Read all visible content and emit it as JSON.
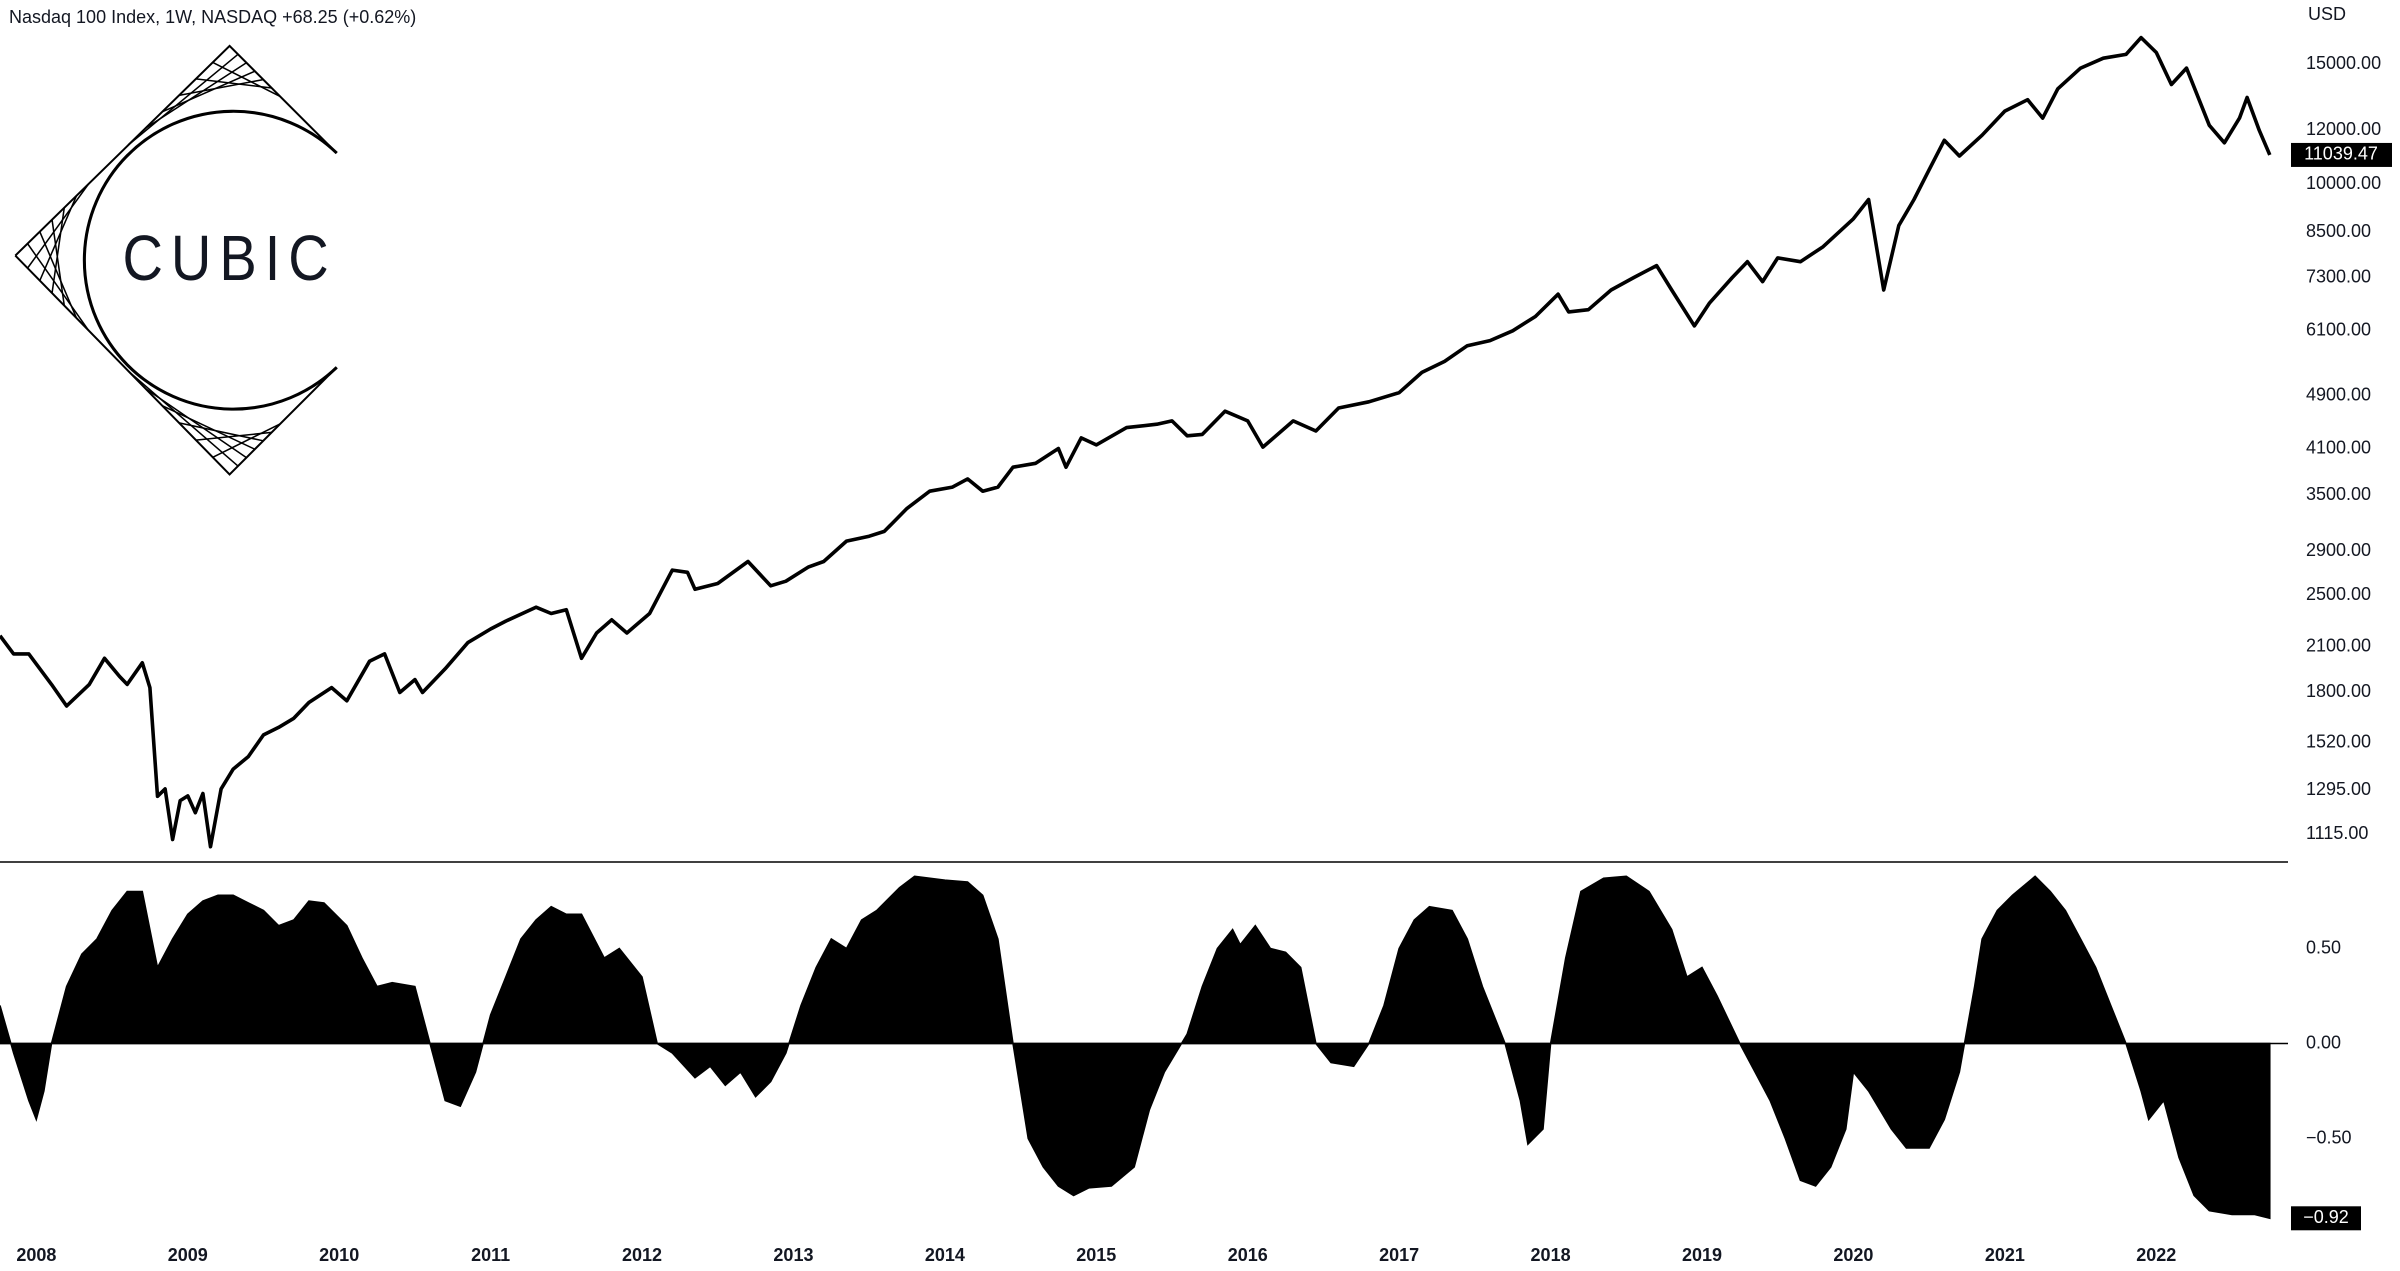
{
  "chart_data": [
    {
      "type": "line",
      "title": "Nasdaq 100 Index, 1W, NASDAQ  +68.25 (+0.62%)",
      "currency": "USD",
      "logo_text": "CUBIC",
      "log_scale": true,
      "color": "#000000",
      "x": [
        2007.76,
        2007.85,
        2007.95,
        2008.1,
        2008.2,
        2008.35,
        2008.45,
        2008.55,
        2008.6,
        2008.7,
        2008.75,
        2008.8,
        2008.85,
        2008.9,
        2008.95,
        2009.0,
        2009.05,
        2009.1,
        2009.15,
        2009.22,
        2009.3,
        2009.4,
        2009.5,
        2009.6,
        2009.7,
        2009.8,
        2009.95,
        2010.05,
        2010.2,
        2010.3,
        2010.4,
        2010.5,
        2010.55,
        2010.7,
        2010.85,
        2011.0,
        2011.1,
        2011.3,
        2011.4,
        2011.5,
        2011.6,
        2011.7,
        2011.8,
        2011.9,
        2012.05,
        2012.2,
        2012.3,
        2012.35,
        2012.5,
        2012.7,
        2012.85,
        2012.95,
        2013.1,
        2013.2,
        2013.35,
        2013.5,
        2013.6,
        2013.75,
        2013.9,
        2014.05,
        2014.15,
        2014.25,
        2014.35,
        2014.45,
        2014.6,
        2014.75,
        2014.8,
        2014.9,
        2015.0,
        2015.2,
        2015.4,
        2015.5,
        2015.6,
        2015.7,
        2015.85,
        2016.0,
        2016.1,
        2016.3,
        2016.45,
        2016.6,
        2016.8,
        2017.0,
        2017.15,
        2017.3,
        2017.45,
        2017.6,
        2017.75,
        2017.9,
        2018.05,
        2018.12,
        2018.25,
        2018.4,
        2018.55,
        2018.7,
        2018.8,
        2018.95,
        2019.05,
        2019.2,
        2019.3,
        2019.4,
        2019.5,
        2019.65,
        2019.8,
        2020.0,
        2020.1,
        2020.2,
        2020.3,
        2020.4,
        2020.5,
        2020.6,
        2020.7,
        2020.85,
        2021.0,
        2021.15,
        2021.25,
        2021.35,
        2021.5,
        2021.65,
        2021.8,
        2021.9,
        2022.0,
        2022.1,
        2022.2,
        2022.35,
        2022.45,
        2022.55,
        2022.6,
        2022.68,
        2022.75
      ],
      "values": [
        2180,
        2050,
        2050,
        1850,
        1720,
        1850,
        2020,
        1900,
        1850,
        1990,
        1830,
        1268,
        1300,
        1096,
        1250,
        1270,
        1200,
        1280,
        1070,
        1300,
        1390,
        1450,
        1560,
        1600,
        1650,
        1740,
        1830,
        1750,
        2000,
        2050,
        1800,
        1880,
        1800,
        1950,
        2130,
        2230,
        2290,
        2400,
        2350,
        2380,
        2020,
        2200,
        2300,
        2200,
        2350,
        2720,
        2700,
        2550,
        2600,
        2800,
        2580,
        2620,
        2750,
        2800,
        3000,
        3050,
        3100,
        3350,
        3550,
        3600,
        3700,
        3550,
        3600,
        3850,
        3900,
        4100,
        3850,
        4250,
        4150,
        4400,
        4450,
        4500,
        4280,
        4300,
        4650,
        4500,
        4120,
        4500,
        4350,
        4700,
        4800,
        4950,
        5300,
        5500,
        5800,
        5900,
        6100,
        6400,
        6900,
        6500,
        6550,
        7000,
        7300,
        7600,
        7000,
        6200,
        6700,
        7300,
        7700,
        7200,
        7800,
        7700,
        8100,
        8900,
        9500,
        7000,
        8700,
        9500,
        10500,
        11600,
        11000,
        11800,
        12800,
        13300,
        12500,
        13800,
        14800,
        15300,
        15500,
        16400,
        15600,
        14000,
        14800,
        12200,
        11500,
        12500,
        13400,
        12000,
        11039.47
      ],
      "xlim": [
        2007.76,
        2022.87
      ],
      "ylim": [
        1016,
        18620
      ],
      "yticks": [
        {
          "value": 1115,
          "label": "1115.00"
        },
        {
          "value": 1295,
          "label": "1295.00"
        },
        {
          "value": 1520,
          "label": "1520.00"
        },
        {
          "value": 1800,
          "label": "1800.00"
        },
        {
          "value": 2100,
          "label": "2100.00"
        },
        {
          "value": 2500,
          "label": "2500.00"
        },
        {
          "value": 2900,
          "label": "2900.00"
        },
        {
          "value": 3500,
          "label": "3500.00"
        },
        {
          "value": 4100,
          "label": "4100.00"
        },
        {
          "value": 4900,
          "label": "4900.00"
        },
        {
          "value": 6100,
          "label": "6100.00"
        },
        {
          "value": 7300,
          "label": "7300.00"
        },
        {
          "value": 8500,
          "label": "8500.00"
        },
        {
          "value": 10000,
          "label": "10000.00"
        },
        {
          "value": 12000,
          "label": "12000.00"
        },
        {
          "value": 15000,
          "label": "15000.00"
        }
      ]
    },
    {
      "type": "area",
      "color": "#000000",
      "last_label": "−0.92",
      "x": [
        2007.76,
        2007.85,
        2007.95,
        2008.0,
        2008.05,
        2008.1,
        2008.2,
        2008.3,
        2008.4,
        2008.5,
        2008.6,
        2008.7,
        2008.75,
        2008.8,
        2008.9,
        2009.0,
        2009.1,
        2009.2,
        2009.3,
        2009.4,
        2009.5,
        2009.6,
        2009.7,
        2009.8,
        2009.9,
        2010.05,
        2010.15,
        2010.25,
        2010.35,
        2010.5,
        2010.6,
        2010.7,
        2010.8,
        2010.9,
        2011.0,
        2011.1,
        2011.2,
        2011.3,
        2011.4,
        2011.5,
        2011.6,
        2011.75,
        2011.85,
        2012.0,
        2012.1,
        2012.2,
        2012.35,
        2012.45,
        2012.55,
        2012.65,
        2012.75,
        2012.85,
        2012.95,
        2013.05,
        2013.15,
        2013.25,
        2013.35,
        2013.45,
        2013.55,
        2013.7,
        2013.8,
        2014.0,
        2014.15,
        2014.25,
        2014.35,
        2014.45,
        2014.55,
        2014.65,
        2014.75,
        2014.85,
        2014.95,
        2015.1,
        2015.25,
        2015.35,
        2015.45,
        2015.6,
        2015.7,
        2015.8,
        2015.9,
        2015.95,
        2016.05,
        2016.15,
        2016.25,
        2016.35,
        2016.45,
        2016.55,
        2016.7,
        2016.8,
        2016.9,
        2017.0,
        2017.1,
        2017.2,
        2017.35,
        2017.45,
        2017.55,
        2017.7,
        2017.8,
        2017.85,
        2017.95,
        2018.0,
        2018.1,
        2018.2,
        2018.35,
        2018.5,
        2018.65,
        2018.8,
        2018.9,
        2019.0,
        2019.1,
        2019.25,
        2019.35,
        2019.45,
        2019.55,
        2019.65,
        2019.75,
        2019.85,
        2019.95,
        2020.0,
        2020.1,
        2020.25,
        2020.35,
        2020.5,
        2020.6,
        2020.7,
        2020.8,
        2020.85,
        2020.95,
        2021.05,
        2021.2,
        2021.3,
        2021.4,
        2021.5,
        2021.6,
        2021.7,
        2021.8,
        2021.9,
        2021.95,
        2022.05,
        2022.15,
        2022.25,
        2022.35,
        2022.5,
        2022.65,
        2022.75
      ],
      "values": [
        0.2,
        -0.05,
        -0.3,
        -0.4,
        -0.25,
        0.0,
        0.3,
        0.47,
        0.55,
        0.7,
        0.8,
        0.8,
        0.6,
        0.4,
        0.55,
        0.68,
        0.75,
        0.78,
        0.78,
        0.74,
        0.7,
        0.62,
        0.65,
        0.75,
        0.74,
        0.62,
        0.45,
        0.3,
        0.32,
        0.3,
        0.0,
        -0.3,
        -0.33,
        -0.15,
        0.15,
        0.35,
        0.55,
        0.65,
        0.72,
        0.68,
        0.68,
        0.45,
        0.5,
        0.35,
        0.0,
        -0.05,
        -0.18,
        -0.12,
        -0.22,
        -0.15,
        -0.28,
        -0.2,
        -0.05,
        0.2,
        0.4,
        0.55,
        0.5,
        0.65,
        0.7,
        0.82,
        0.88,
        0.86,
        0.85,
        0.78,
        0.55,
        0.0,
        -0.5,
        -0.65,
        -0.75,
        -0.8,
        -0.76,
        -0.75,
        -0.65,
        -0.35,
        -0.15,
        0.05,
        0.3,
        0.5,
        0.6,
        0.52,
        0.62,
        0.5,
        0.48,
        0.4,
        0.0,
        -0.1,
        -0.12,
        0.0,
        0.2,
        0.5,
        0.65,
        0.72,
        0.7,
        0.55,
        0.3,
        0.0,
        -0.3,
        -0.53,
        -0.45,
        0.0,
        0.45,
        0.8,
        0.87,
        0.88,
        0.8,
        0.6,
        0.35,
        0.4,
        0.25,
        0.0,
        -0.15,
        -0.3,
        -0.5,
        -0.72,
        -0.75,
        -0.65,
        -0.45,
        -0.15,
        -0.25,
        -0.45,
        -0.55,
        -0.55,
        -0.4,
        -0.15,
        0.3,
        0.55,
        0.7,
        0.78,
        0.88,
        0.8,
        0.7,
        0.55,
        0.4,
        0.2,
        0.0,
        -0.25,
        -0.4,
        -0.3,
        -0.6,
        -0.8,
        -0.88,
        -0.9,
        -0.9,
        -0.92
      ],
      "xlim": [
        2007.76,
        2022.87
      ],
      "ylim": [
        -0.95,
        0.95
      ],
      "xticks": [
        2008,
        2009,
        2010,
        2011,
        2012,
        2013,
        2014,
        2015,
        2016,
        2017,
        2018,
        2019,
        2020,
        2021,
        2022
      ],
      "yticks": [
        {
          "value": -0.5,
          "label": "−0.50"
        },
        {
          "value": 0,
          "label": "0.00"
        },
        {
          "value": 0.5,
          "label": "0.50"
        }
      ]
    }
  ]
}
